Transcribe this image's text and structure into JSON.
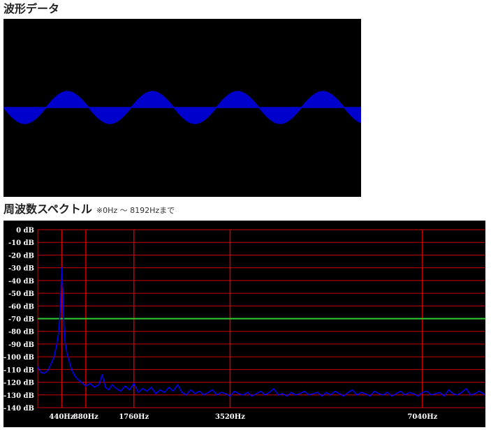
{
  "waveform": {
    "title": "波形データ",
    "fill_color": "#0000cc",
    "cycles": 4.2,
    "amplitude": 0.09
  },
  "spectrum": {
    "title": "周波数スペクトル",
    "note": "※0Hz ～ 8192Hzまで",
    "chart_data": {
      "type": "line",
      "title": "",
      "xlabel": "",
      "ylabel": "",
      "xlim": [
        0,
        8192
      ],
      "ylim": [
        -140,
        0
      ],
      "y_ticks": [
        0,
        -10,
        -20,
        -30,
        -40,
        -50,
        -60,
        -70,
        -80,
        -90,
        -100,
        -110,
        -120,
        -130,
        -140
      ],
      "y_tick_labels": [
        "0 dB",
        "-10 dB",
        "-20 dB",
        "-30 dB",
        "-40 dB",
        "-50 dB",
        "-60 dB",
        "-70 dB",
        "-80 dB",
        "-90 dB",
        "-100 dB",
        "-110 dB",
        "-120 dB",
        "-130 dB",
        "-140 dB"
      ],
      "x_markers": [
        {
          "hz": 440,
          "label": "440Hz"
        },
        {
          "hz": 880,
          "label": "880Hz"
        },
        {
          "hz": 1760,
          "label": "1760Hz"
        },
        {
          "hz": 3520,
          "label": "3520Hz"
        },
        {
          "hz": 7040,
          "label": "7040Hz"
        }
      ],
      "threshold_db": -70,
      "grid": true,
      "colors": {
        "grid": "#cc0000",
        "threshold": "#33cc33",
        "series": "#0000ee",
        "labels": "#ffffff"
      },
      "series": [
        {
          "x": [
            0,
            60,
            120,
            180,
            240,
            300,
            340,
            380,
            400,
            420,
            440,
            460,
            480,
            500,
            540,
            580,
            620,
            680,
            740,
            800,
            880,
            960,
            1040,
            1120,
            1180,
            1240,
            1300,
            1360,
            1440,
            1520,
            1600,
            1680,
            1760,
            1840,
            1920,
            2000,
            2080,
            2160,
            2240,
            2320,
            2400,
            2480,
            2560,
            2640,
            2720,
            2800,
            2880,
            2960,
            3040,
            3120,
            3200,
            3280,
            3360,
            3440,
            3520,
            3600,
            3680,
            3760,
            3840,
            3920,
            4000,
            4080,
            4160,
            4240,
            4320,
            4400,
            4480,
            4560,
            4640,
            4720,
            4800,
            4880,
            4960,
            5040,
            5120,
            5200,
            5280,
            5360,
            5440,
            5520,
            5600,
            5680,
            5760,
            5840,
            5920,
            6000,
            6080,
            6160,
            6240,
            6320,
            6400,
            6480,
            6560,
            6640,
            6720,
            6800,
            6880,
            6960,
            7040,
            7120,
            7200,
            7280,
            7360,
            7440,
            7520,
            7600,
            7680,
            7760,
            7840,
            7920,
            8000,
            8080,
            8192
          ],
          "y": [
            -108,
            -112,
            -113,
            -111,
            -106,
            -100,
            -92,
            -82,
            -72,
            -55,
            -30,
            -50,
            -75,
            -88,
            -98,
            -104,
            -110,
            -115,
            -118,
            -120,
            -123,
            -121,
            -124,
            -122,
            -114,
            -124,
            -126,
            -122,
            -125,
            -127,
            -123,
            -126,
            -121,
            -128,
            -125,
            -127,
            -124,
            -129,
            -126,
            -128,
            -124,
            -127,
            -122,
            -128,
            -130,
            -126,
            -129,
            -127,
            -130,
            -128,
            -126,
            -130,
            -128,
            -129,
            -131,
            -127,
            -129,
            -130,
            -128,
            -131,
            -129,
            -127,
            -130,
            -128,
            -125,
            -130,
            -129,
            -131,
            -128,
            -130,
            -129,
            -127,
            -130,
            -129,
            -128,
            -131,
            -128,
            -130,
            -127,
            -129,
            -131,
            -128,
            -126,
            -130,
            -128,
            -129,
            -131,
            -127,
            -129,
            -130,
            -128,
            -131,
            -129,
            -127,
            -130,
            -128,
            -129,
            -131,
            -128,
            -127,
            -130,
            -129,
            -128,
            -131,
            -126,
            -129,
            -130,
            -128,
            -125,
            -130,
            -129,
            -127,
            -130
          ]
        }
      ]
    }
  }
}
